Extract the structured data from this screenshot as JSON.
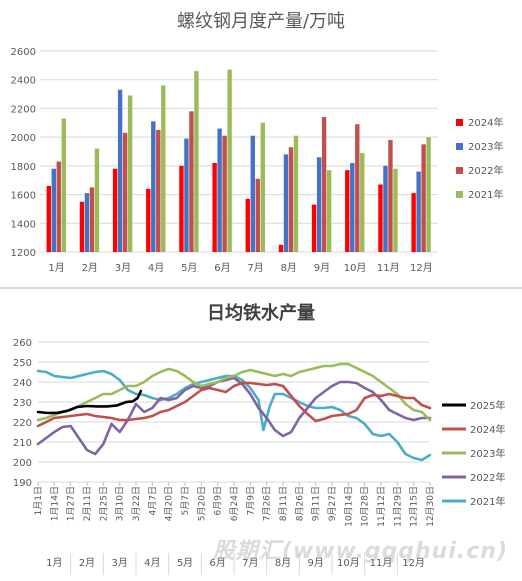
{
  "watermark": "股期汇(www.gqqhui.cn)",
  "chart_data": [
    {
      "type": "bar",
      "title": "螺纹钢月度产量/万吨",
      "categories": [
        "1月",
        "2月",
        "3月",
        "4月",
        "5月",
        "6月",
        "7月",
        "8月",
        "9月",
        "10月",
        "11月",
        "12月"
      ],
      "ylim": [
        1200,
        2600
      ],
      "yticks": [
        1200,
        1400,
        1600,
        1800,
        2000,
        2200,
        2400,
        2600
      ],
      "grid": true,
      "legend_position": "right",
      "series": [
        {
          "name": "2024年",
          "color": "#ff0000",
          "values": [
            1660,
            1550,
            1780,
            1640,
            1800,
            1820,
            1570,
            1250,
            1530,
            1770,
            1670,
            1610
          ]
        },
        {
          "name": "2023年",
          "color": "#4472c4",
          "values": [
            1780,
            1610,
            2330,
            2110,
            1990,
            2060,
            2010,
            1880,
            1860,
            1820,
            1800,
            1760
          ]
        },
        {
          "name": "2022年",
          "color": "#c0504d",
          "values": [
            1830,
            1650,
            2030,
            2050,
            2180,
            2010,
            1710,
            1930,
            2140,
            2090,
            1980,
            1950
          ]
        },
        {
          "name": "2021年",
          "color": "#9bbb59",
          "values": [
            2130,
            1920,
            2290,
            2360,
            2460,
            2470,
            2100,
            2010,
            1770,
            1890,
            1780,
            2000
          ]
        }
      ]
    },
    {
      "type": "line",
      "title": "日均铁水产量",
      "ylim": [
        190,
        260
      ],
      "yticks": [
        190,
        200,
        210,
        220,
        230,
        240,
        250,
        260
      ],
      "grid": true,
      "legend_position": "right",
      "x_ticks": [
        "1月1日",
        "1月14日",
        "1月27日",
        "2月11日",
        "2月25日",
        "3月10日",
        "3月22日",
        "4月7日",
        "4月20日",
        "5月7日",
        "5月20日",
        "6月9日",
        "6月24日",
        "7月9日",
        "7月26日",
        "8月11日",
        "8月26日",
        "9月11日",
        "9月27日",
        "10月14日",
        "10月28日",
        "11月12日",
        "11月29日",
        "12月15日",
        "12月30日"
      ],
      "months": [
        "1月",
        "2月",
        "3月",
        "4月",
        "5月",
        "6月",
        "7月",
        "8月",
        "9月",
        "10月",
        "11月",
        "12月"
      ],
      "series": [
        {
          "name": "2025年",
          "color": "#000000",
          "width": 2.6,
          "values": [
            [
              0,
              225
            ],
            [
              0.6,
              224.5
            ],
            [
              1.2,
              224.6
            ],
            [
              1.8,
              225.6
            ],
            [
              2.4,
              227.5
            ],
            [
              3.0,
              228
            ],
            [
              3.6,
              227.8
            ],
            [
              4.2,
              227.8
            ],
            [
              4.8,
              228.2
            ],
            [
              5.4,
              230
            ],
            [
              5.8,
              230.3
            ],
            [
              6.1,
              232
            ],
            [
              6.3,
              235.5
            ]
          ]
        },
        {
          "name": "2024年",
          "color": "#c0504d",
          "width": 2.6,
          "values": [
            [
              0,
              218
            ],
            [
              0.5,
              220
            ],
            [
              1.0,
              222
            ],
            [
              1.5,
              222.5
            ],
            [
              2.0,
              223
            ],
            [
              2.5,
              223.5
            ],
            [
              3.0,
              224
            ],
            [
              3.5,
              223
            ],
            [
              4.0,
              222.5
            ],
            [
              4.5,
              222
            ],
            [
              5.0,
              221
            ],
            [
              5.5,
              221
            ],
            [
              6.0,
              221.5
            ],
            [
              6.5,
              222
            ],
            [
              7.0,
              223
            ],
            [
              7.5,
              225
            ],
            [
              8.0,
              226
            ],
            [
              8.5,
              228
            ],
            [
              9.0,
              230
            ],
            [
              9.5,
              233
            ],
            [
              10.0,
              236
            ],
            [
              10.5,
              237
            ],
            [
              11.0,
              236
            ],
            [
              11.5,
              235
            ],
            [
              12.0,
              238
            ],
            [
              12.5,
              239.5
            ],
            [
              13.0,
              239.5
            ],
            [
              13.5,
              239
            ],
            [
              14.0,
              238.5
            ],
            [
              14.5,
              239
            ],
            [
              15.0,
              238
            ],
            [
              15.5,
              233
            ],
            [
              16.0,
              228
            ],
            [
              16.5,
              224
            ],
            [
              17.0,
              220.5
            ],
            [
              17.5,
              221.5
            ],
            [
              18.0,
              223
            ],
            [
              18.5,
              223.5
            ],
            [
              19.0,
              224
            ],
            [
              19.5,
              226
            ],
            [
              20.0,
              232
            ],
            [
              20.5,
              233.5
            ],
            [
              21.0,
              233
            ],
            [
              21.5,
              234
            ],
            [
              22.0,
              233
            ],
            [
              22.5,
              232
            ],
            [
              23.0,
              232
            ],
            [
              23.5,
              228.5
            ],
            [
              24.0,
              227
            ]
          ]
        },
        {
          "name": "2023年",
          "color": "#9bbb59",
          "width": 2.6,
          "values": [
            [
              0,
              221
            ],
            [
              0.5,
              222
            ],
            [
              1.0,
              223.5
            ],
            [
              1.5,
              225
            ],
            [
              2.0,
              226
            ],
            [
              2.5,
              228
            ],
            [
              3.0,
              230
            ],
            [
              3.5,
              232
            ],
            [
              4.0,
              234
            ],
            [
              4.5,
              234
            ],
            [
              5.0,
              236
            ],
            [
              5.5,
              238
            ],
            [
              6.0,
              238
            ],
            [
              6.5,
              240
            ],
            [
              7.0,
              243
            ],
            [
              7.5,
              245
            ],
            [
              8.0,
              246.5
            ],
            [
              8.5,
              245.5
            ],
            [
              9.0,
              243
            ],
            [
              9.5,
              240
            ],
            [
              10.0,
              238
            ],
            [
              10.5,
              239
            ],
            [
              11.0,
              240
            ],
            [
              11.5,
              242
            ],
            [
              12.0,
              243
            ],
            [
              12.5,
              245
            ],
            [
              13.0,
              246
            ],
            [
              13.5,
              245
            ],
            [
              14.0,
              244
            ],
            [
              14.5,
              243
            ],
            [
              15.0,
              244
            ],
            [
              15.5,
              243
            ],
            [
              16.0,
              245
            ],
            [
              16.5,
              246
            ],
            [
              17.0,
              247
            ],
            [
              17.5,
              248
            ],
            [
              18.0,
              248
            ],
            [
              18.5,
              249
            ],
            [
              19.0,
              249
            ],
            [
              19.5,
              247
            ],
            [
              20.0,
              245
            ],
            [
              20.5,
              243
            ],
            [
              21.0,
              240
            ],
            [
              21.5,
              237
            ],
            [
              22.0,
              234
            ],
            [
              22.5,
              229
            ],
            [
              23.0,
              226
            ],
            [
              23.5,
              225
            ],
            [
              24.0,
              221
            ]
          ]
        },
        {
          "name": "2022年",
          "color": "#8064a2",
          "width": 2.6,
          "values": [
            [
              0,
              209
            ],
            [
              0.5,
              212
            ],
            [
              1.0,
              215
            ],
            [
              1.5,
              217.5
            ],
            [
              2.0,
              218
            ],
            [
              2.5,
              212
            ],
            [
              3.0,
              206
            ],
            [
              3.5,
              204
            ],
            [
              4.0,
              209
            ],
            [
              4.5,
              219
            ],
            [
              5.0,
              215
            ],
            [
              5.5,
              221
            ],
            [
              6.0,
              229
            ],
            [
              6.5,
              225
            ],
            [
              7.0,
              227
            ],
            [
              7.5,
              232
            ],
            [
              8.0,
              231
            ],
            [
              8.5,
              232
            ],
            [
              9.0,
              236
            ],
            [
              9.5,
              238
            ],
            [
              10.0,
              237
            ],
            [
              10.5,
              238
            ],
            [
              11.0,
              240
            ],
            [
              11.5,
              241
            ],
            [
              12.0,
              242
            ],
            [
              12.5,
              239
            ],
            [
              13.0,
              234
            ],
            [
              13.5,
              227
            ],
            [
              14.0,
              222
            ],
            [
              14.5,
              216
            ],
            [
              15.0,
              213
            ],
            [
              15.5,
              215
            ],
            [
              16.0,
              222
            ],
            [
              16.5,
              227
            ],
            [
              17.0,
              232
            ],
            [
              17.5,
              235
            ],
            [
              18.0,
              238
            ],
            [
              18.5,
              240
            ],
            [
              19.0,
              240
            ],
            [
              19.5,
              239.5
            ],
            [
              20.0,
              237
            ],
            [
              20.5,
              235
            ],
            [
              21.0,
              231
            ],
            [
              21.5,
              226
            ],
            [
              22.0,
              224
            ],
            [
              22.5,
              222
            ],
            [
              23.0,
              221
            ],
            [
              23.5,
              222
            ],
            [
              24.0,
              222
            ]
          ]
        },
        {
          "name": "2021年",
          "color": "#4bacc6",
          "width": 2.6,
          "values": [
            [
              0,
              245.5
            ],
            [
              0.5,
              245
            ],
            [
              1.0,
              243
            ],
            [
              1.5,
              242.5
            ],
            [
              2.0,
              242
            ],
            [
              2.5,
              243
            ],
            [
              3.0,
              244
            ],
            [
              3.5,
              245
            ],
            [
              4.0,
              245.5
            ],
            [
              4.5,
              244
            ],
            [
              5.0,
              241
            ],
            [
              5.5,
              236
            ],
            [
              6.0,
              234
            ],
            [
              6.5,
              233.5
            ],
            [
              7.0,
              232
            ],
            [
              7.5,
              231
            ],
            [
              8.0,
              232
            ],
            [
              8.5,
              234
            ],
            [
              9.0,
              237
            ],
            [
              9.5,
              239
            ],
            [
              10.0,
              240
            ],
            [
              10.5,
              241
            ],
            [
              11.0,
              242
            ],
            [
              11.5,
              243
            ],
            [
              12.0,
              243
            ],
            [
              12.5,
              241
            ],
            [
              13.0,
              237
            ],
            [
              13.5,
              231
            ],
            [
              13.8,
              216
            ],
            [
              14.2,
              228
            ],
            [
              14.5,
              234
            ],
            [
              15.0,
              234
            ],
            [
              15.5,
              232
            ],
            [
              16.0,
              230
            ],
            [
              16.5,
              228
            ],
            [
              17.0,
              227
            ],
            [
              17.5,
              227
            ],
            [
              18.0,
              227.5
            ],
            [
              18.5,
              226
            ],
            [
              19.0,
              223
            ],
            [
              19.5,
              222
            ],
            [
              20.0,
              219
            ],
            [
              20.5,
              214
            ],
            [
              21.0,
              213
            ],
            [
              21.5,
              214
            ],
            [
              22.0,
              210
            ],
            [
              22.5,
              204
            ],
            [
              23.0,
              202
            ],
            [
              23.5,
              201
            ],
            [
              24.0,
              203.5
            ]
          ]
        }
      ]
    }
  ]
}
